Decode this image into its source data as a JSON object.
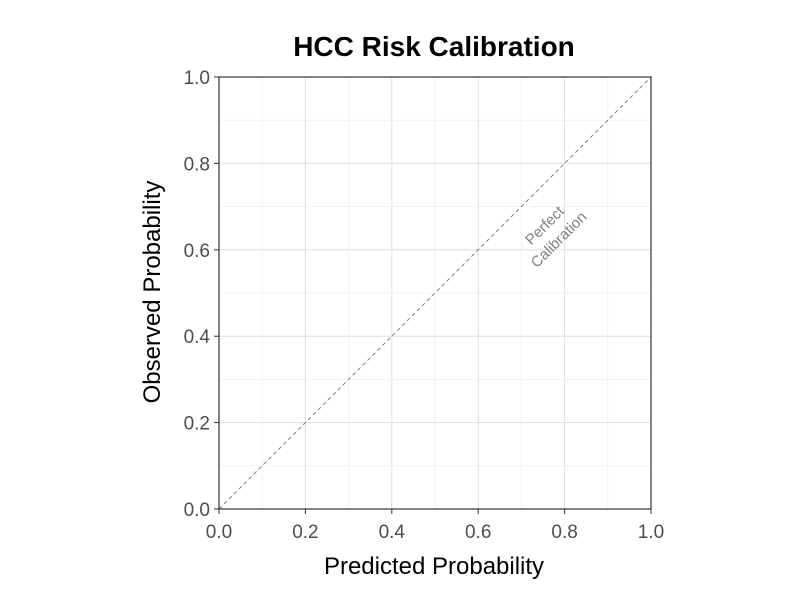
{
  "chart_data": {
    "type": "line",
    "title": "HCC Risk Calibration",
    "xlabel": "Predicted Probability",
    "ylabel": "Observed Probability",
    "xlim": [
      0,
      1
    ],
    "ylim": [
      0,
      1
    ],
    "x_ticks": [
      0.0,
      0.2,
      0.4,
      0.6,
      0.8,
      1.0
    ],
    "y_ticks": [
      0.0,
      0.2,
      0.4,
      0.6,
      0.8,
      1.0
    ],
    "x_tick_labels": [
      "0.0",
      "0.2",
      "0.4",
      "0.6",
      "0.8",
      "1.0"
    ],
    "y_tick_labels": [
      "0.0",
      "0.2",
      "0.4",
      "0.6",
      "0.8",
      "1.0"
    ],
    "grid": true,
    "series": [
      {
        "x": [
          0,
          1
        ],
        "y": [
          0,
          1
        ],
        "style": "dashed",
        "color": "#808080"
      }
    ],
    "annotations": [
      {
        "lines": [
          "Perfect",
          "Calibration"
        ],
        "x": 0.77,
        "y": 0.64,
        "rotation_deg": -45,
        "color": "#808080"
      }
    ]
  }
}
